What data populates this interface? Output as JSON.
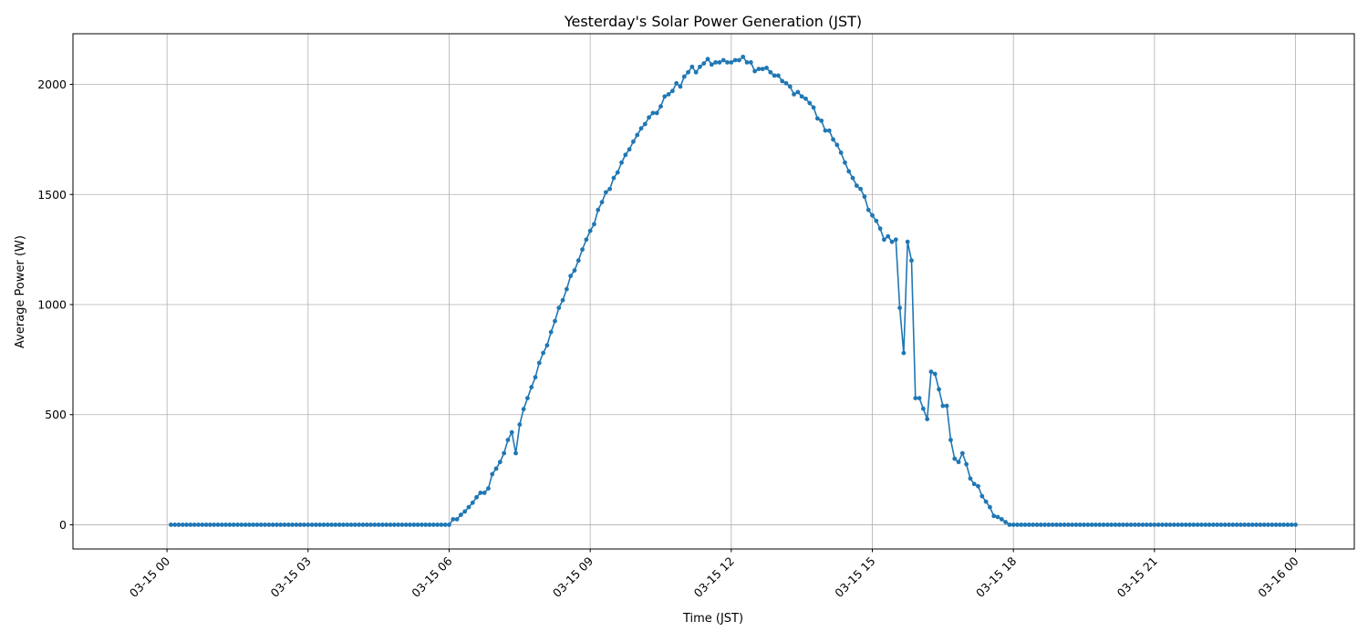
{
  "chart_data": {
    "type": "line",
    "title": "Yesterday's Solar Power Generation (JST)",
    "xlabel": "Time (JST)",
    "ylabel": "Average Power (W)",
    "ylim": [
      -110,
      2230
    ],
    "xlim": [
      "03-14 22:00",
      "03-16 01:15"
    ],
    "yticks": [
      0,
      500,
      1000,
      1500,
      2000
    ],
    "xticks": [
      "03-15 00",
      "03-15 03",
      "03-15 06",
      "03-15 09",
      "03-15 12",
      "03-15 15",
      "03-15 18",
      "03-15 21",
      "03-16 00"
    ],
    "grid": true,
    "marker": "circle",
    "color": "#1f77b4",
    "x": [
      "03-15 00:05",
      "03-15 00:10",
      "03-15 00:15",
      "03-15 00:20",
      "03-15 00:25",
      "03-15 00:30",
      "03-15 00:35",
      "03-15 00:40",
      "03-15 00:45",
      "03-15 00:50",
      "03-15 00:55",
      "03-15 01:00",
      "03-15 01:05",
      "03-15 01:10",
      "03-15 01:15",
      "03-15 01:20",
      "03-15 01:25",
      "03-15 01:30",
      "03-15 01:35",
      "03-15 01:40",
      "03-15 01:45",
      "03-15 01:50",
      "03-15 01:55",
      "03-15 02:00",
      "03-15 02:05",
      "03-15 02:10",
      "03-15 02:15",
      "03-15 02:20",
      "03-15 02:25",
      "03-15 02:30",
      "03-15 02:35",
      "03-15 02:40",
      "03-15 02:45",
      "03-15 02:50",
      "03-15 02:55",
      "03-15 03:00",
      "03-15 03:05",
      "03-15 03:10",
      "03-15 03:15",
      "03-15 03:20",
      "03-15 03:25",
      "03-15 03:30",
      "03-15 03:35",
      "03-15 03:40",
      "03-15 03:45",
      "03-15 03:50",
      "03-15 03:55",
      "03-15 04:00",
      "03-15 04:05",
      "03-15 04:10",
      "03-15 04:15",
      "03-15 04:20",
      "03-15 04:25",
      "03-15 04:30",
      "03-15 04:35",
      "03-15 04:40",
      "03-15 04:45",
      "03-15 04:50",
      "03-15 04:55",
      "03-15 05:00",
      "03-15 05:05",
      "03-15 05:10",
      "03-15 05:15",
      "03-15 05:20",
      "03-15 05:25",
      "03-15 05:30",
      "03-15 05:35",
      "03-15 05:40",
      "03-15 05:45",
      "03-15 05:50",
      "03-15 05:55",
      "03-15 06:00",
      "03-15 06:05",
      "03-15 06:10",
      "03-15 06:15",
      "03-15 06:20",
      "03-15 06:25",
      "03-15 06:30",
      "03-15 06:35",
      "03-15 06:40",
      "03-15 06:45",
      "03-15 06:50",
      "03-15 06:55",
      "03-15 07:00",
      "03-15 07:05",
      "03-15 07:10",
      "03-15 07:15",
      "03-15 07:20",
      "03-15 07:25",
      "03-15 07:30",
      "03-15 07:35",
      "03-15 07:40",
      "03-15 07:45",
      "03-15 07:50",
      "03-15 07:55",
      "03-15 08:00",
      "03-15 08:05",
      "03-15 08:10",
      "03-15 08:15",
      "03-15 08:20",
      "03-15 08:25",
      "03-15 08:30",
      "03-15 08:35",
      "03-15 08:40",
      "03-15 08:45",
      "03-15 08:50",
      "03-15 08:55",
      "03-15 09:00",
      "03-15 09:05",
      "03-15 09:10",
      "03-15 09:15",
      "03-15 09:20",
      "03-15 09:25",
      "03-15 09:30",
      "03-15 09:35",
      "03-15 09:40",
      "03-15 09:45",
      "03-15 09:50",
      "03-15 09:55",
      "03-15 10:00",
      "03-15 10:05",
      "03-15 10:10",
      "03-15 10:15",
      "03-15 10:20",
      "03-15 10:25",
      "03-15 10:30",
      "03-15 10:35",
      "03-15 10:40",
      "03-15 10:45",
      "03-15 10:50",
      "03-15 10:55",
      "03-15 11:00",
      "03-15 11:05",
      "03-15 11:10",
      "03-15 11:15",
      "03-15 11:20",
      "03-15 11:25",
      "03-15 11:30",
      "03-15 11:35",
      "03-15 11:40",
      "03-15 11:45",
      "03-15 11:50",
      "03-15 11:55",
      "03-15 12:00",
      "03-15 12:05",
      "03-15 12:10",
      "03-15 12:15",
      "03-15 12:20",
      "03-15 12:25",
      "03-15 12:30",
      "03-15 12:35",
      "03-15 12:40",
      "03-15 12:45",
      "03-15 12:50",
      "03-15 12:55",
      "03-15 13:00",
      "03-15 13:05",
      "03-15 13:10",
      "03-15 13:15",
      "03-15 13:20",
      "03-15 13:25",
      "03-15 13:30",
      "03-15 13:35",
      "03-15 13:40",
      "03-15 13:45",
      "03-15 13:50",
      "03-15 13:55",
      "03-15 14:00",
      "03-15 14:05",
      "03-15 14:10",
      "03-15 14:15",
      "03-15 14:20",
      "03-15 14:25",
      "03-15 14:30",
      "03-15 14:35",
      "03-15 14:40",
      "03-15 14:45",
      "03-15 14:50",
      "03-15 14:55",
      "03-15 15:00",
      "03-15 15:05",
      "03-15 15:10",
      "03-15 15:15",
      "03-15 15:20",
      "03-15 15:25",
      "03-15 15:30",
      "03-15 15:35",
      "03-15 15:40",
      "03-15 15:45",
      "03-15 15:50",
      "03-15 15:55",
      "03-15 16:00",
      "03-15 16:05",
      "03-15 16:10",
      "03-15 16:15",
      "03-15 16:20",
      "03-15 16:25",
      "03-15 16:30",
      "03-15 16:35",
      "03-15 16:40",
      "03-15 16:45",
      "03-15 16:50",
      "03-15 16:55",
      "03-15 17:00",
      "03-15 17:05",
      "03-15 17:10",
      "03-15 17:15",
      "03-15 17:20",
      "03-15 17:25",
      "03-15 17:30",
      "03-15 17:35",
      "03-15 17:40",
      "03-15 17:45",
      "03-15 17:50",
      "03-15 17:55",
      "03-15 18:00",
      "03-15 18:05",
      "03-15 18:10",
      "03-15 18:15",
      "03-15 18:20",
      "03-15 18:25",
      "03-15 18:30",
      "03-15 18:35",
      "03-15 18:40",
      "03-15 18:45",
      "03-15 18:50",
      "03-15 18:55",
      "03-15 19:00",
      "03-15 19:05",
      "03-15 19:10",
      "03-15 19:15",
      "03-15 19:20",
      "03-15 19:25",
      "03-15 19:30",
      "03-15 19:35",
      "03-15 19:40",
      "03-15 19:45",
      "03-15 19:50",
      "03-15 19:55",
      "03-15 20:00",
      "03-15 20:05",
      "03-15 20:10",
      "03-15 20:15",
      "03-15 20:20",
      "03-15 20:25",
      "03-15 20:30",
      "03-15 20:35",
      "03-15 20:40",
      "03-15 20:45",
      "03-15 20:50",
      "03-15 20:55",
      "03-15 21:00",
      "03-15 21:05",
      "03-15 21:10",
      "03-15 21:15",
      "03-15 21:20",
      "03-15 21:25",
      "03-15 21:30",
      "03-15 21:35",
      "03-15 21:40",
      "03-15 21:45",
      "03-15 21:50",
      "03-15 21:55",
      "03-15 22:00",
      "03-15 22:05",
      "03-15 22:10",
      "03-15 22:15",
      "03-15 22:20",
      "03-15 22:25",
      "03-15 22:30",
      "03-15 22:35",
      "03-15 22:40",
      "03-15 22:45",
      "03-15 22:50",
      "03-15 22:55",
      "03-15 23:00",
      "03-15 23:05",
      "03-15 23:10",
      "03-15 23:15",
      "03-15 23:20",
      "03-15 23:25",
      "03-15 23:30",
      "03-15 23:35",
      "03-15 23:40",
      "03-15 23:45",
      "03-15 23:50",
      "03-15 23:55",
      "03-16 00:00"
    ],
    "y": [
      0,
      0,
      0,
      0,
      0,
      0,
      0,
      0,
      0,
      0,
      0,
      0,
      0,
      0,
      0,
      0,
      0,
      0,
      0,
      0,
      0,
      0,
      0,
      0,
      0,
      0,
      0,
      0,
      0,
      0,
      0,
      0,
      0,
      0,
      0,
      0,
      0,
      0,
      0,
      0,
      0,
      0,
      0,
      0,
      0,
      0,
      0,
      0,
      0,
      0,
      0,
      0,
      0,
      0,
      0,
      0,
      0,
      0,
      0,
      0,
      0,
      0,
      0,
      0,
      0,
      0,
      0,
      0,
      0,
      0,
      0,
      0,
      25,
      25,
      45,
      60,
      80,
      100,
      125,
      145,
      145,
      165,
      230,
      255,
      285,
      325,
      385,
      420,
      325,
      455,
      525,
      575,
      625,
      670,
      735,
      780,
      815,
      875,
      925,
      985,
      1020,
      1070,
      1130,
      1155,
      1200,
      1250,
      1295,
      1335,
      1365,
      1430,
      1465,
      1510,
      1525,
      1575,
      1600,
      1645,
      1680,
      1705,
      1740,
      1770,
      1800,
      1820,
      1850,
      1870,
      1870,
      1900,
      1945,
      1955,
      1970,
      2005,
      1990,
      2035,
      2055,
      2080,
      2055,
      2080,
      2095,
      2115,
      2090,
      2100,
      2100,
      2110,
      2100,
      2100,
      2110,
      2110,
      2125,
      2100,
      2100,
      2060,
      2070,
      2070,
      2075,
      2055,
      2040,
      2040,
      2015,
      2005,
      1990,
      1955,
      1965,
      1945,
      1935,
      1915,
      1895,
      1845,
      1835,
      1790,
      1790,
      1750,
      1725,
      1690,
      1645,
      1605,
      1575,
      1540,
      1525,
      1490,
      1430,
      1405,
      1380,
      1345,
      1295,
      1310,
      1285,
      1295,
      985,
      780,
      1285,
      1200,
      575,
      575,
      527,
      480,
      695,
      685,
      615,
      540,
      540,
      385,
      300,
      285,
      325,
      275,
      210,
      185,
      175,
      130,
      105,
      80,
      40,
      35,
      25,
      12,
      0,
      0,
      0,
      0,
      0,
      0,
      0,
      0,
      0,
      0,
      0,
      0,
      0,
      0,
      0,
      0,
      0,
      0,
      0,
      0,
      0,
      0,
      0,
      0,
      0,
      0,
      0,
      0,
      0,
      0,
      0,
      0,
      0,
      0,
      0,
      0,
      0,
      0,
      0,
      0,
      0,
      0,
      0,
      0,
      0,
      0,
      0,
      0,
      0,
      0,
      0,
      0,
      0,
      0,
      0,
      0,
      0,
      0,
      0,
      0,
      0,
      0,
      0,
      0,
      0,
      0,
      0,
      0,
      0,
      0,
      0,
      0,
      0,
      0
    ]
  }
}
